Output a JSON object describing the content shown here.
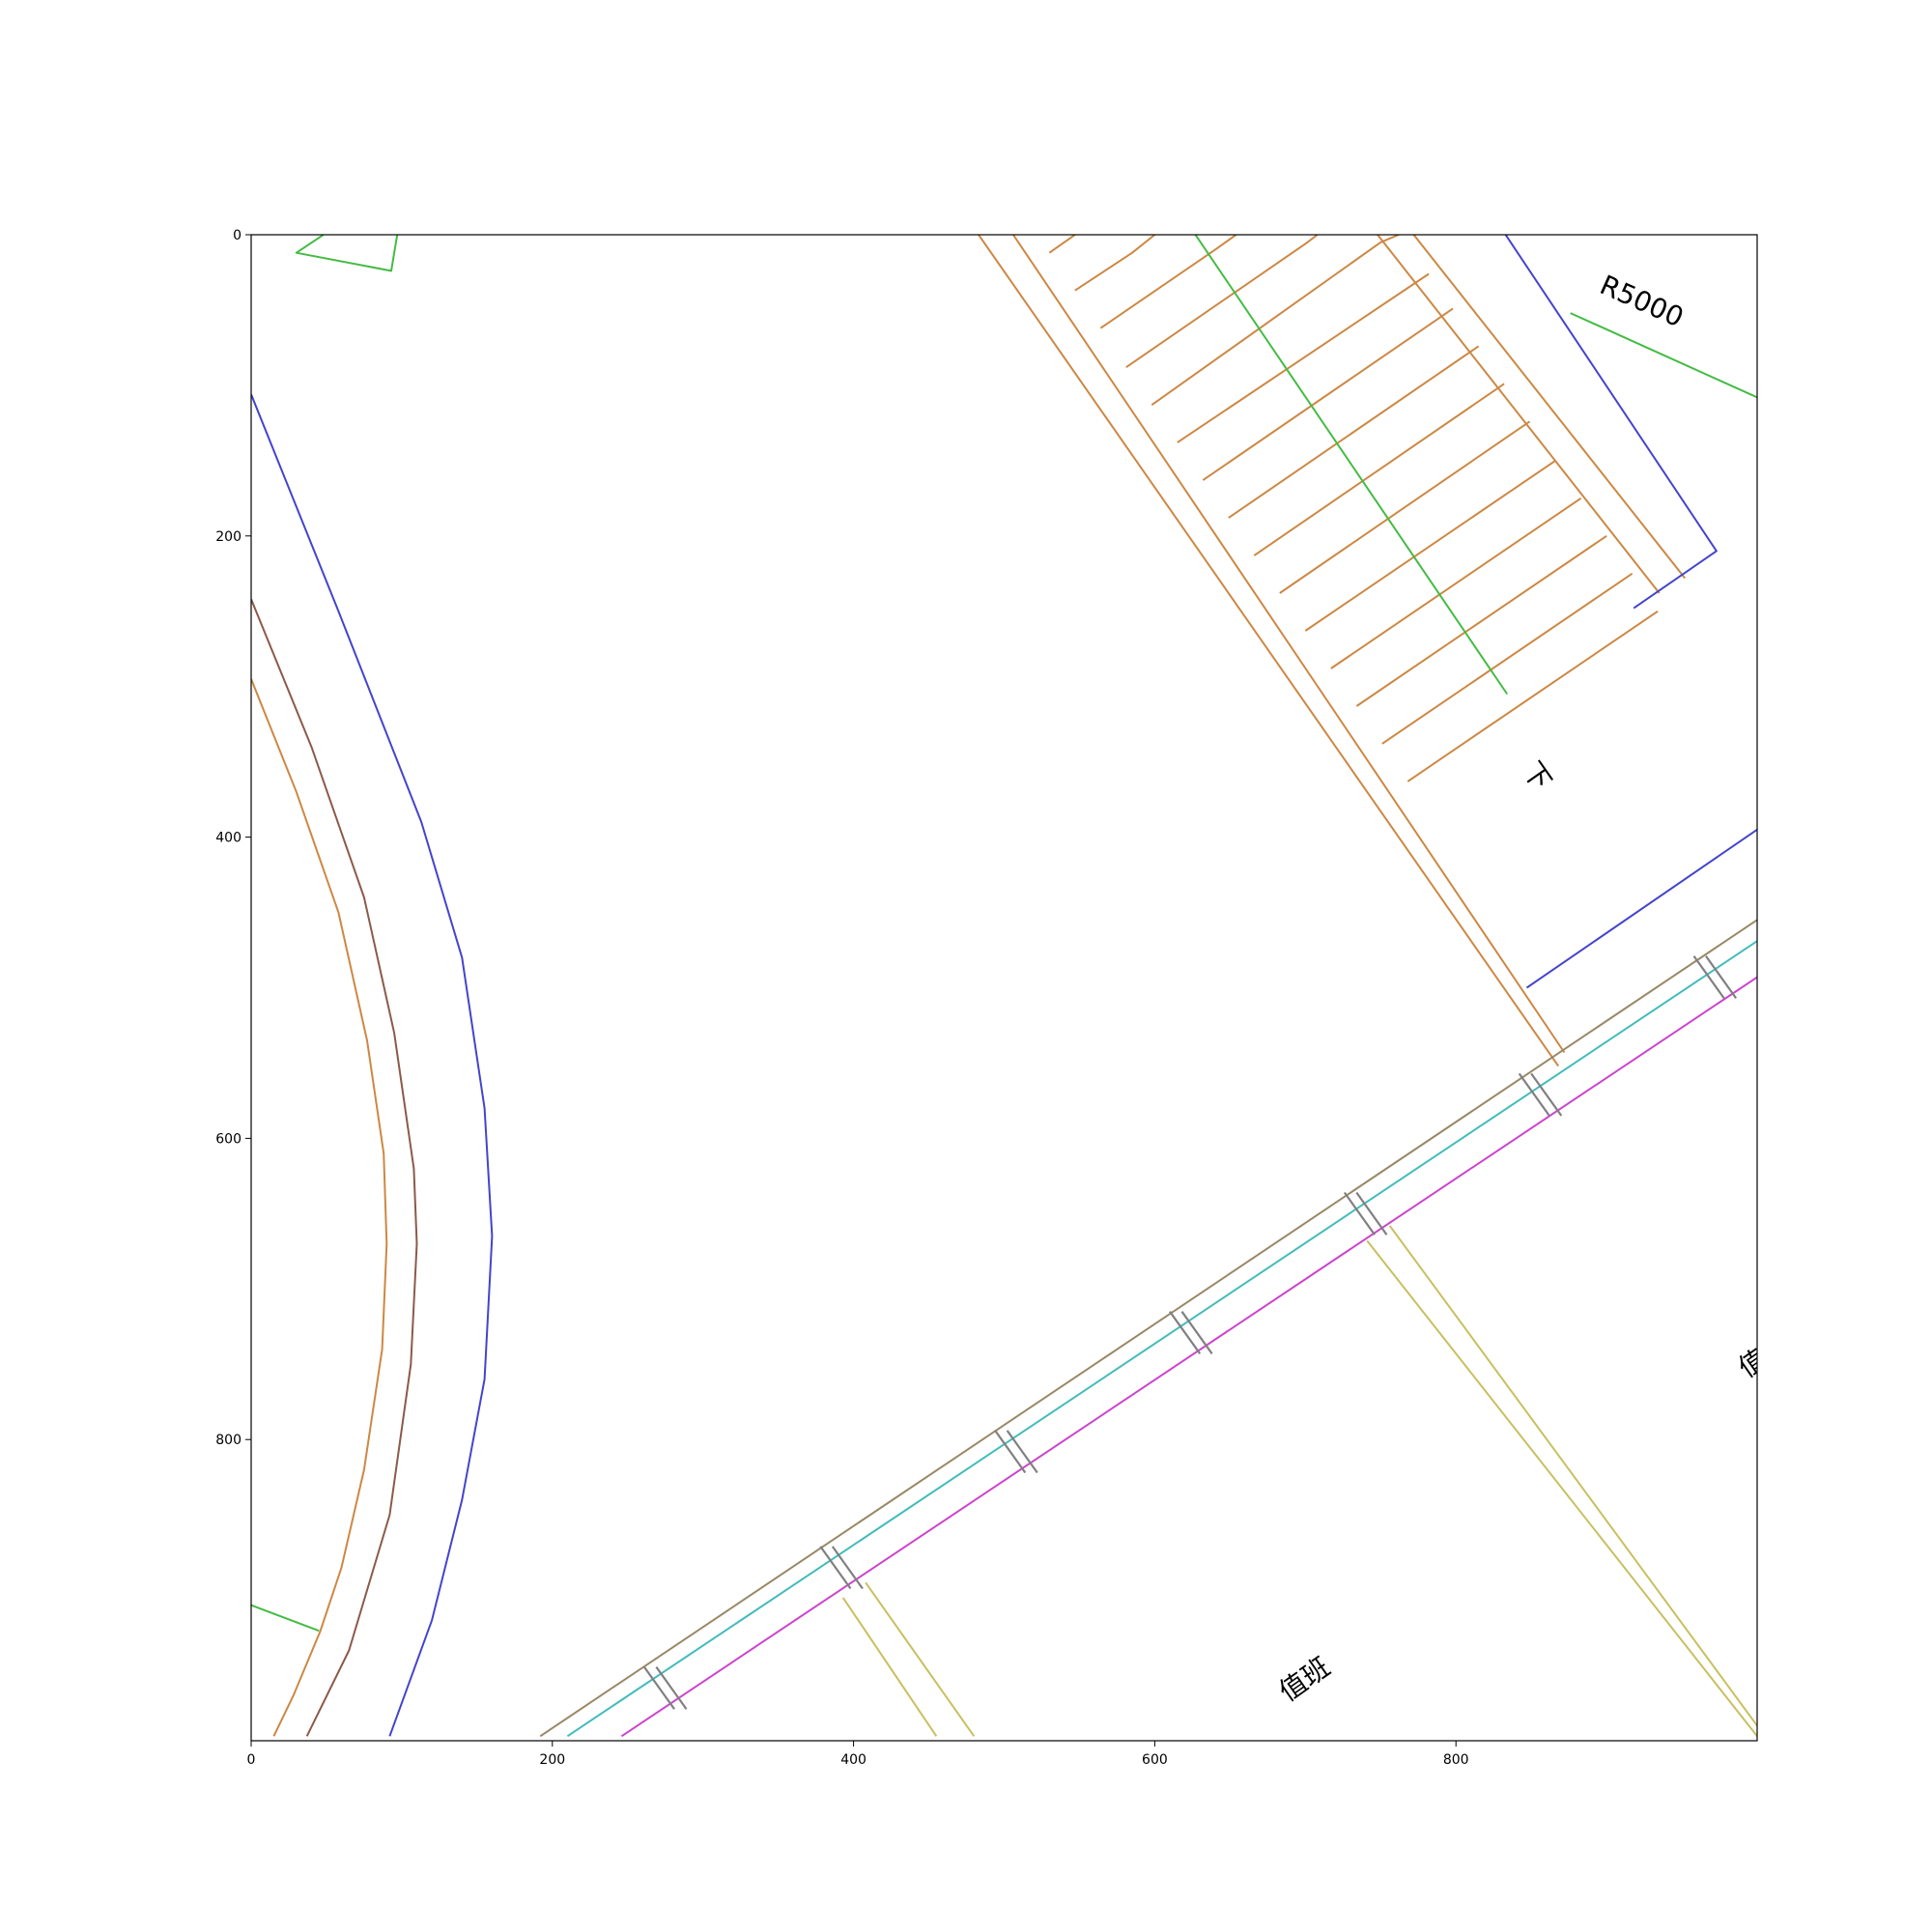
{
  "chart_data": {
    "type": "diagram",
    "xlim": [
      0,
      1000
    ],
    "ylim": [
      1000,
      0
    ],
    "x_ticks": [
      "0",
      "200",
      "400",
      "600",
      "800"
    ],
    "y_ticks": [
      "0",
      "200",
      "400",
      "600",
      "800"
    ],
    "x_tick_values": [
      0,
      200,
      400,
      600,
      800
    ],
    "y_tick_values": [
      0,
      200,
      400,
      600,
      800
    ],
    "colors": {
      "blue": "#4444cc",
      "orange": "#cc8844",
      "green": "#44bb44",
      "brown": "#8b5a4a",
      "olive": "#998866",
      "cyan": "#44bbbb",
      "magenta": "#cc44cc",
      "yellow": "#c8c060",
      "gray": "#808080"
    },
    "annotations": [
      {
        "key": "r5000",
        "text": "R5000",
        "x": 923,
        "y": 45,
        "angle": 24
      },
      {
        "key": "down",
        "text": "下",
        "x": 853,
        "y": 360,
        "angle": 55
      },
      {
        "key": "duty1",
        "text": "值班",
        "x": 700,
        "y": 960,
        "angle": -35
      },
      {
        "key": "duty2",
        "text": "值班",
        "x": 1005,
        "y": 745,
        "angle": -35
      }
    ],
    "lines": [
      {
        "color": "green",
        "points": [
          [
            48,
            0
          ],
          [
            30,
            12
          ],
          [
            93,
            24
          ],
          [
            97,
            0
          ]
        ]
      },
      {
        "color": "blue",
        "points": [
          [
            0,
            106
          ],
          [
            58,
            250
          ],
          [
            113,
            390
          ],
          [
            140,
            480
          ],
          [
            155,
            580
          ],
          [
            160,
            665
          ],
          [
            155,
            760
          ],
          [
            140,
            840
          ],
          [
            120,
            920
          ],
          [
            92,
            997
          ]
        ]
      },
      {
        "color": "brown",
        "points": [
          [
            0,
            242
          ],
          [
            40,
            340
          ],
          [
            75,
            440
          ],
          [
            95,
            530
          ],
          [
            108,
            620
          ],
          [
            110,
            670
          ],
          [
            106,
            750
          ],
          [
            92,
            850
          ],
          [
            65,
            940
          ],
          [
            37,
            997
          ]
        ]
      },
      {
        "color": "orange",
        "points": [
          [
            0,
            295
          ],
          [
            30,
            370
          ],
          [
            58,
            450
          ],
          [
            77,
            535
          ],
          [
            88,
            610
          ],
          [
            90,
            670
          ],
          [
            87,
            740
          ],
          [
            75,
            820
          ],
          [
            60,
            885
          ],
          [
            46,
            927
          ],
          [
            28,
            970
          ],
          [
            15,
            997
          ]
        ]
      },
      {
        "color": "green",
        "points": [
          [
            0,
            910
          ],
          [
            45,
            927
          ]
        ]
      },
      {
        "color": "orange",
        "points": [
          [
            483,
            0
          ],
          [
            868,
            552
          ]
        ]
      },
      {
        "color": "orange",
        "points": [
          [
            506,
            0
          ],
          [
            872,
            543
          ]
        ]
      },
      {
        "color": "orange",
        "points": [
          [
            748,
            0
          ],
          [
            935,
            238
          ]
        ]
      },
      {
        "color": "orange",
        "points": [
          [
            772,
            0
          ],
          [
            952,
            228
          ]
        ]
      },
      {
        "color": "orange",
        "points": [
          [
            530,
            12
          ],
          [
            547,
            0
          ]
        ]
      },
      {
        "color": "orange",
        "points": [
          [
            547,
            37
          ],
          [
            585,
            12
          ],
          [
            600,
            0
          ]
        ]
      },
      {
        "color": "orange",
        "points": [
          [
            564,
            62
          ],
          [
            640,
            10
          ],
          [
            654,
            0
          ]
        ]
      },
      {
        "color": "orange",
        "points": [
          [
            581,
            88
          ],
          [
            700,
            6
          ],
          [
            708,
            0
          ]
        ]
      },
      {
        "color": "orange",
        "points": [
          [
            598,
            113
          ],
          [
            750,
            5
          ],
          [
            762,
            0
          ]
        ]
      },
      {
        "color": "orange",
        "points": [
          [
            615,
            138
          ],
          [
            782,
            26
          ]
        ]
      },
      {
        "color": "orange",
        "points": [
          [
            632,
            163
          ],
          [
            798,
            49
          ]
        ]
      },
      {
        "color": "orange",
        "points": [
          [
            649,
            188
          ],
          [
            815,
            74
          ]
        ]
      },
      {
        "color": "orange",
        "points": [
          [
            666,
            213
          ],
          [
            832,
            99
          ]
        ]
      },
      {
        "color": "orange",
        "points": [
          [
            683,
            238
          ],
          [
            849,
            124
          ]
        ]
      },
      {
        "color": "orange",
        "points": [
          [
            700,
            263
          ],
          [
            866,
            150
          ]
        ]
      },
      {
        "color": "orange",
        "points": [
          [
            717,
            288
          ],
          [
            883,
            175
          ]
        ]
      },
      {
        "color": "orange",
        "points": [
          [
            734,
            313
          ],
          [
            900,
            200
          ]
        ]
      },
      {
        "color": "orange",
        "points": [
          [
            751,
            338
          ],
          [
            917,
            225
          ]
        ]
      },
      {
        "color": "orange",
        "points": [
          [
            768,
            363
          ],
          [
            934,
            250
          ]
        ]
      },
      {
        "color": "green",
        "points": [
          [
            627,
            0
          ],
          [
            834,
            305
          ]
        ]
      },
      {
        "color": "blue",
        "points": [
          [
            833,
            0
          ],
          [
            973,
            210
          ],
          [
            918,
            248
          ]
        ]
      },
      {
        "color": "green",
        "points": [
          [
            876,
            52
          ],
          [
            1000,
            108
          ]
        ]
      },
      {
        "color": "blue",
        "points": [
          [
            847,
            500
          ],
          [
            1000,
            395
          ]
        ]
      },
      {
        "color": "olive",
        "points": [
          [
            192,
            997
          ],
          [
            1000,
            455
          ]
        ]
      },
      {
        "color": "cyan",
        "points": [
          [
            210,
            997
          ],
          [
            1000,
            469
          ]
        ]
      },
      {
        "color": "magenta",
        "points": [
          [
            246,
            997
          ],
          [
            1000,
            493
          ]
        ]
      },
      {
        "color": "yellow",
        "points": [
          [
            393,
            905
          ],
          [
            455,
            997
          ]
        ]
      },
      {
        "color": "yellow",
        "points": [
          [
            408,
            895
          ],
          [
            480,
            997
          ]
        ]
      },
      {
        "color": "yellow",
        "points": [
          [
            741,
            668
          ],
          [
            1000,
            997
          ]
        ]
      },
      {
        "color": "yellow",
        "points": [
          [
            756,
            658
          ],
          [
            1000,
            990
          ]
        ]
      }
    ],
    "hatch_marks": [
      [
        275,
        965
      ],
      [
        392,
        885
      ],
      [
        508,
        808
      ],
      [
        624,
        729
      ],
      [
        740,
        650
      ],
      [
        856,
        571
      ],
      [
        972,
        493
      ]
    ]
  }
}
